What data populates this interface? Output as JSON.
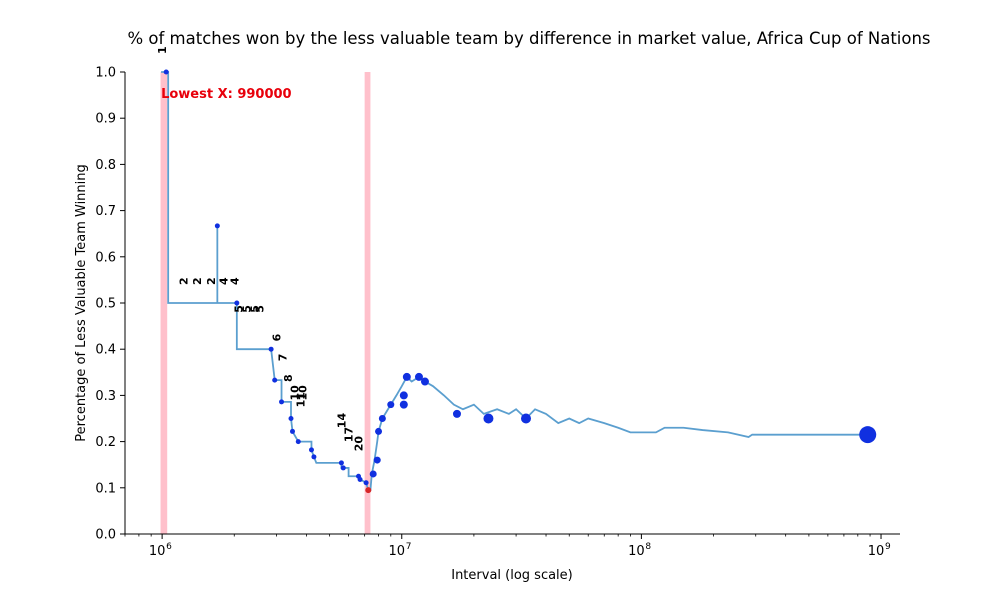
{
  "chart_data": {
    "type": "line",
    "title": "% of matches won by the less valuable team by difference in market value, Africa Cup of Nations",
    "xlabel": "Interval (log scale)",
    "ylabel": "Percentage of Less Valuable Team Winning",
    "x_scale": "log",
    "xlim": [
      700000,
      1200000000
    ],
    "ylim": [
      0,
      1.0
    ],
    "x_ticks": [
      {
        "value": 1000000,
        "base": "10",
        "exp": "6"
      },
      {
        "value": 10000000,
        "base": "10",
        "exp": "7"
      },
      {
        "value": 100000000,
        "base": "10",
        "exp": "8"
      },
      {
        "value": 1000000000,
        "base": "10",
        "exp": "9"
      }
    ],
    "y_ticks": [
      "0.0",
      "0.1",
      "0.2",
      "0.3",
      "0.4",
      "0.5",
      "0.6",
      "0.7",
      "0.8",
      "0.9",
      "1.0"
    ],
    "grid": false,
    "series_color": "#5b9fcf",
    "point_color": "#1030e0",
    "highlight_color": "#d62728",
    "band_color": "#ffc0cb",
    "bands": [
      {
        "x0": 985000,
        "x1": 1050000
      },
      {
        "x0": 7000000,
        "x1": 7400000
      }
    ],
    "annotation": {
      "text": "Lowest X: 990000",
      "x": 990000,
      "y": 0.955,
      "color": "#e8000b"
    },
    "step_series": [
      [
        990000,
        1.0
      ],
      [
        1060000,
        1.0
      ],
      [
        1060000,
        0.5
      ],
      [
        1700000,
        0.5
      ],
      [
        1700000,
        0.667
      ],
      [
        1700000,
        0.5
      ],
      [
        2050000,
        0.5
      ],
      [
        2050000,
        0.4
      ],
      [
        2850000,
        0.4
      ],
      [
        2950000,
        0.333
      ],
      [
        3150000,
        0.333
      ],
      [
        3150000,
        0.286
      ],
      [
        3450000,
        0.286
      ],
      [
        3450000,
        0.25
      ],
      [
        3500000,
        0.222
      ],
      [
        3700000,
        0.2
      ],
      [
        4200000,
        0.2
      ],
      [
        4200000,
        0.182
      ],
      [
        4300000,
        0.167
      ],
      [
        4400000,
        0.154
      ],
      [
        5600000,
        0.154
      ],
      [
        5600000,
        0.143
      ],
      [
        6000000,
        0.143
      ],
      [
        6000000,
        0.125
      ],
      [
        6600000,
        0.125
      ],
      [
        6700000,
        0.118
      ],
      [
        7100000,
        0.111
      ],
      [
        7250000,
        0.095
      ],
      [
        7400000,
        0.095
      ],
      [
        7500000,
        0.13
      ],
      [
        7700000,
        0.16
      ],
      [
        7900000,
        0.2
      ],
      [
        8000000,
        0.222
      ],
      [
        8300000,
        0.25
      ],
      [
        9000000,
        0.28
      ],
      [
        9500000,
        0.3
      ],
      [
        10000000,
        0.32
      ],
      [
        10500000,
        0.34
      ],
      [
        11000000,
        0.33
      ],
      [
        11800000,
        0.34
      ],
      [
        12500000,
        0.33
      ],
      [
        13500000,
        0.32
      ],
      [
        15000000,
        0.3
      ],
      [
        16500000,
        0.28
      ],
      [
        18000000,
        0.27
      ],
      [
        20000000,
        0.28
      ],
      [
        22000000,
        0.26
      ],
      [
        25000000,
        0.27
      ],
      [
        28000000,
        0.26
      ],
      [
        30000000,
        0.27
      ],
      [
        33000000,
        0.25
      ],
      [
        36000000,
        0.27
      ],
      [
        40000000,
        0.26
      ],
      [
        45000000,
        0.24
      ],
      [
        50000000,
        0.25
      ],
      [
        55000000,
        0.24
      ],
      [
        60000000,
        0.25
      ],
      [
        70000000,
        0.24
      ],
      [
        80000000,
        0.23
      ],
      [
        90000000,
        0.22
      ],
      [
        100000000,
        0.22
      ],
      [
        115000000,
        0.22
      ],
      [
        125000000,
        0.23
      ],
      [
        150000000,
        0.23
      ],
      [
        180000000,
        0.225
      ],
      [
        230000000,
        0.22
      ],
      [
        280000000,
        0.21
      ],
      [
        290000000,
        0.215
      ],
      [
        880000000,
        0.215
      ]
    ],
    "points": [
      {
        "x": 1040000,
        "y": 1.0,
        "r": 2.5
      },
      {
        "x": 1700000,
        "y": 0.667,
        "r": 2.5
      },
      {
        "x": 2050000,
        "y": 0.5,
        "r": 2.5
      },
      {
        "x": 2850000,
        "y": 0.4,
        "r": 2.5
      },
      {
        "x": 2950000,
        "y": 0.333,
        "r": 2.5
      },
      {
        "x": 3150000,
        "y": 0.286,
        "r": 2.5
      },
      {
        "x": 3450000,
        "y": 0.25,
        "r": 2.5
      },
      {
        "x": 3500000,
        "y": 0.222,
        "r": 2.5
      },
      {
        "x": 3700000,
        "y": 0.2,
        "r": 2.5
      },
      {
        "x": 4200000,
        "y": 0.182,
        "r": 2.5
      },
      {
        "x": 4300000,
        "y": 0.167,
        "r": 2.5
      },
      {
        "x": 5600000,
        "y": 0.154,
        "r": 2.5
      },
      {
        "x": 5700000,
        "y": 0.143,
        "r": 2.5
      },
      {
        "x": 6600000,
        "y": 0.125,
        "r": 2.5
      },
      {
        "x": 6700000,
        "y": 0.118,
        "r": 2.5
      },
      {
        "x": 7100000,
        "y": 0.111,
        "r": 2.5
      },
      {
        "x": 7600000,
        "y": 0.13,
        "r": 3.5
      },
      {
        "x": 7900000,
        "y": 0.16,
        "r": 3.5
      },
      {
        "x": 8000000,
        "y": 0.222,
        "r": 3.5
      },
      {
        "x": 8300000,
        "y": 0.25,
        "r": 3.5
      },
      {
        "x": 9000000,
        "y": 0.28,
        "r": 3.5
      },
      {
        "x": 10200000,
        "y": 0.28,
        "r": 4
      },
      {
        "x": 10200000,
        "y": 0.3,
        "r": 4
      },
      {
        "x": 10500000,
        "y": 0.34,
        "r": 4
      },
      {
        "x": 11800000,
        "y": 0.34,
        "r": 4
      },
      {
        "x": 12500000,
        "y": 0.33,
        "r": 4
      },
      {
        "x": 17000000,
        "y": 0.26,
        "r": 4
      },
      {
        "x": 23000000,
        "y": 0.25,
        "r": 5
      },
      {
        "x": 33000000,
        "y": 0.25,
        "r": 5
      },
      {
        "x": 880000000,
        "y": 0.215,
        "r": 8.5
      }
    ],
    "highlight_point": {
      "x": 7250000,
      "y": 0.095
    },
    "count_labels": [
      {
        "text": "1",
        "x": 1000000,
        "y": 1.0
      },
      {
        "text": "2",
        "x": 1230000,
        "y": 0.5
      },
      {
        "text": "2",
        "x": 1400000,
        "y": 0.5
      },
      {
        "text": "2",
        "x": 1600000,
        "y": 0.5
      },
      {
        "text": "4",
        "x": 1800000,
        "y": 0.5
      },
      {
        "text": "4",
        "x": 2000000,
        "y": 0.5
      },
      {
        "text": "5",
        "x": 2080000,
        "y": 0.44
      },
      {
        "text": "5",
        "x": 2250000,
        "y": 0.44
      },
      {
        "text": "5",
        "x": 2430000,
        "y": 0.44
      },
      {
        "text": "5",
        "x": 2550000,
        "y": 0.44
      },
      {
        "text": "6",
        "x": 3000000,
        "y": 0.378
      },
      {
        "text": "7",
        "x": 3180000,
        "y": 0.335
      },
      {
        "text": "8",
        "x": 3350000,
        "y": 0.29
      },
      {
        "text": "10",
        "x": 3570000,
        "y": 0.25
      },
      {
        "text": "11",
        "x": 3780000,
        "y": 0.235
      },
      {
        "text": "10",
        "x": 3850000,
        "y": 0.25
      },
      {
        "text": "14",
        "x": 5600000,
        "y": 0.19
      },
      {
        "text": "17",
        "x": 6000000,
        "y": 0.16
      },
      {
        "text": "20",
        "x": 6600000,
        "y": 0.14
      }
    ]
  }
}
